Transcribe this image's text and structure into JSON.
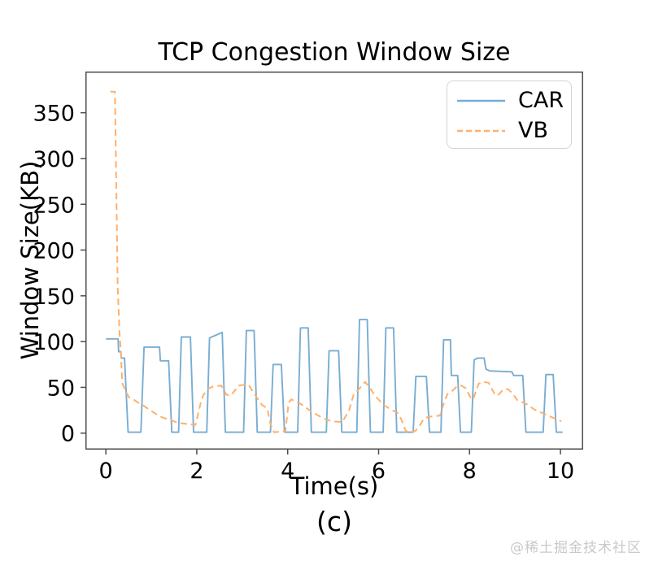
{
  "caption": "(c)",
  "watermark": "@稀土掘金技术社区",
  "chart_data": {
    "type": "line",
    "title": "TCP Congestion Window Size",
    "xlabel": "Time(s)",
    "ylabel": "Window Size(KB)",
    "xlim": [
      -0.45,
      10.5
    ],
    "ylim": [
      -18,
      395
    ],
    "x_ticks": [
      0,
      2,
      4,
      6,
      8,
      10
    ],
    "y_ticks": [
      0,
      50,
      100,
      150,
      200,
      250,
      300,
      350
    ],
    "grid": false,
    "legend_position": "upper right",
    "axis_color": "#4d4d4d",
    "series": [
      {
        "name": "CAR",
        "color": "#79add2",
        "style": "solid",
        "width": 1.9,
        "points": [
          [
            0.0,
            103
          ],
          [
            0.27,
            103
          ],
          [
            0.28,
            89
          ],
          [
            0.33,
            89
          ],
          [
            0.34,
            82
          ],
          [
            0.41,
            82
          ],
          [
            0.49,
            1
          ],
          [
            0.77,
            1
          ],
          [
            0.84,
            94
          ],
          [
            1.18,
            94
          ],
          [
            1.2,
            79
          ],
          [
            1.38,
            79
          ],
          [
            1.45,
            1
          ],
          [
            1.6,
            1
          ],
          [
            1.66,
            105
          ],
          [
            1.86,
            105
          ],
          [
            1.93,
            1
          ],
          [
            2.22,
            1
          ],
          [
            2.28,
            104
          ],
          [
            2.56,
            110
          ],
          [
            2.63,
            1
          ],
          [
            3.03,
            1
          ],
          [
            3.09,
            112
          ],
          [
            3.26,
            112
          ],
          [
            3.33,
            1
          ],
          [
            3.62,
            1
          ],
          [
            3.68,
            75
          ],
          [
            3.86,
            75
          ],
          [
            3.93,
            1
          ],
          [
            4.22,
            1
          ],
          [
            4.28,
            115
          ],
          [
            4.45,
            115
          ],
          [
            4.52,
            1
          ],
          [
            4.85,
            1
          ],
          [
            4.91,
            90
          ],
          [
            5.12,
            90
          ],
          [
            5.19,
            1
          ],
          [
            5.52,
            1
          ],
          [
            5.58,
            124
          ],
          [
            5.75,
            124
          ],
          [
            5.82,
            1
          ],
          [
            6.1,
            1
          ],
          [
            6.16,
            115
          ],
          [
            6.33,
            115
          ],
          [
            6.4,
            1
          ],
          [
            6.76,
            1
          ],
          [
            6.82,
            62
          ],
          [
            7.05,
            62
          ],
          [
            7.12,
            1
          ],
          [
            7.37,
            1
          ],
          [
            7.43,
            102
          ],
          [
            7.58,
            102
          ],
          [
            7.6,
            63
          ],
          [
            7.74,
            63
          ],
          [
            7.8,
            1
          ],
          [
            8.04,
            1
          ],
          [
            8.1,
            80
          ],
          [
            8.18,
            82
          ],
          [
            8.32,
            82
          ],
          [
            8.36,
            70
          ],
          [
            8.44,
            68
          ],
          [
            8.93,
            67
          ],
          [
            8.97,
            63
          ],
          [
            9.17,
            63
          ],
          [
            9.24,
            1
          ],
          [
            9.62,
            1
          ],
          [
            9.68,
            64
          ],
          [
            9.84,
            64
          ],
          [
            9.91,
            1
          ],
          [
            10.05,
            1
          ]
        ]
      },
      {
        "name": "VB",
        "color": "#ffb06a",
        "style": "dashed",
        "width": 2.0,
        "points": [
          [
            0.1,
            373
          ],
          [
            0.2,
            373
          ],
          [
            0.26,
            160
          ],
          [
            0.3,
            110
          ],
          [
            0.33,
            88
          ],
          [
            0.36,
            55
          ],
          [
            0.42,
            47
          ],
          [
            0.51,
            39
          ],
          [
            0.63,
            36
          ],
          [
            0.72,
            33
          ],
          [
            0.83,
            30
          ],
          [
            0.95,
            26
          ],
          [
            1.1,
            21
          ],
          [
            1.25,
            17
          ],
          [
            1.43,
            14
          ],
          [
            1.61,
            11
          ],
          [
            1.79,
            10
          ],
          [
            1.97,
            9
          ],
          [
            2.09,
            34
          ],
          [
            2.15,
            42
          ],
          [
            2.27,
            49
          ],
          [
            2.36,
            51
          ],
          [
            2.54,
            52
          ],
          [
            2.65,
            42
          ],
          [
            2.75,
            41
          ],
          [
            2.92,
            52
          ],
          [
            3.07,
            53
          ],
          [
            3.15,
            52
          ],
          [
            3.25,
            44
          ],
          [
            3.43,
            31
          ],
          [
            3.55,
            27
          ],
          [
            3.62,
            10
          ],
          [
            3.7,
            1
          ],
          [
            3.95,
            2
          ],
          [
            4.02,
            33
          ],
          [
            4.08,
            37
          ],
          [
            4.15,
            35
          ],
          [
            4.28,
            32
          ],
          [
            4.51,
            24
          ],
          [
            4.68,
            19
          ],
          [
            4.79,
            16
          ],
          [
            4.97,
            13
          ],
          [
            5.2,
            12
          ],
          [
            5.35,
            25
          ],
          [
            5.45,
            42
          ],
          [
            5.6,
            50
          ],
          [
            5.7,
            56
          ],
          [
            5.8,
            50
          ],
          [
            5.92,
            41
          ],
          [
            6.1,
            31
          ],
          [
            6.3,
            25
          ],
          [
            6.42,
            22
          ],
          [
            6.5,
            15
          ],
          [
            6.6,
            2
          ],
          [
            6.8,
            2
          ],
          [
            6.9,
            8
          ],
          [
            7.0,
            16
          ],
          [
            7.1,
            18
          ],
          [
            7.35,
            19
          ],
          [
            7.45,
            35
          ],
          [
            7.52,
            43
          ],
          [
            7.62,
            46
          ],
          [
            7.72,
            51
          ],
          [
            7.82,
            52
          ],
          [
            7.92,
            49
          ],
          [
            8.02,
            39
          ],
          [
            8.08,
            37
          ],
          [
            8.2,
            54
          ],
          [
            8.3,
            56
          ],
          [
            8.42,
            55
          ],
          [
            8.55,
            43
          ],
          [
            8.62,
            41
          ],
          [
            8.75,
            48
          ],
          [
            8.85,
            48
          ],
          [
            8.95,
            43
          ],
          [
            9.05,
            36
          ],
          [
            9.15,
            34
          ],
          [
            9.28,
            31
          ],
          [
            9.42,
            26
          ],
          [
            9.6,
            22
          ],
          [
            9.78,
            18
          ],
          [
            9.92,
            15
          ],
          [
            10.02,
            13
          ]
        ]
      }
    ]
  }
}
